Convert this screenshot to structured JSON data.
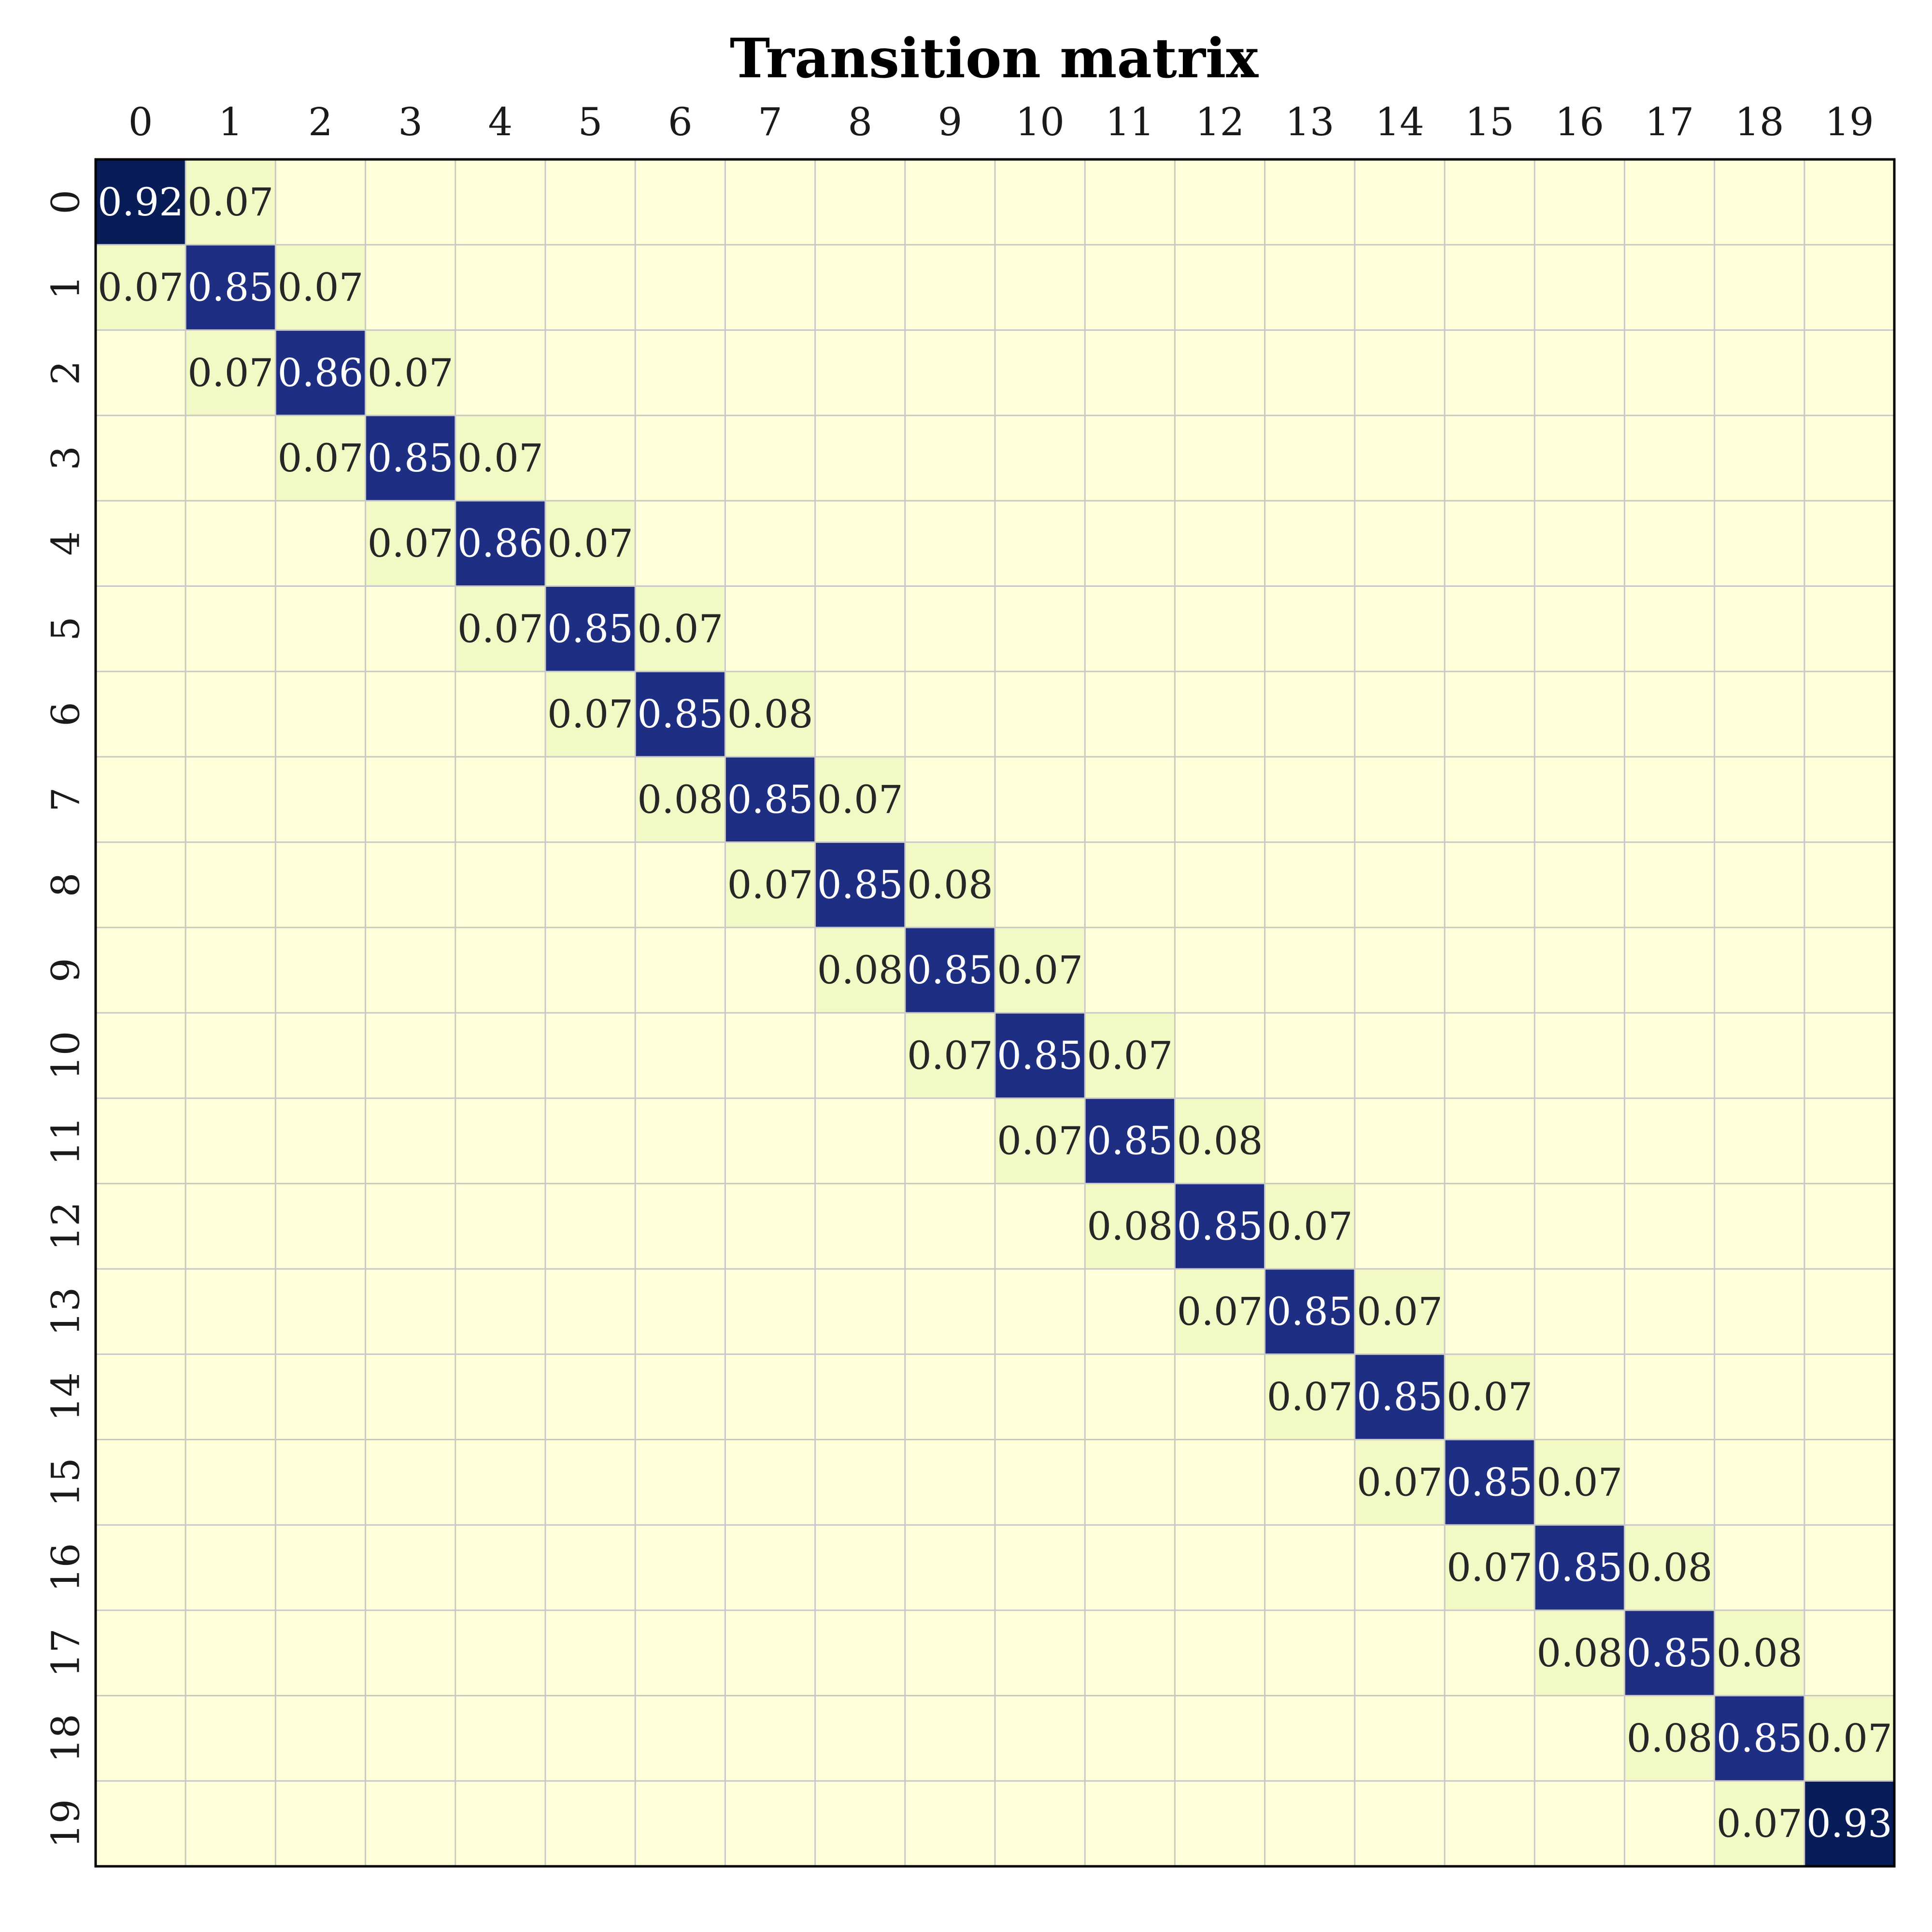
{
  "chart_data": {
    "type": "heatmap",
    "title": "Transition matrix",
    "xlabel": "",
    "ylabel": "",
    "x_tick_position": "top",
    "x_categories": [
      "0",
      "1",
      "2",
      "3",
      "4",
      "5",
      "6",
      "7",
      "8",
      "9",
      "10",
      "11",
      "12",
      "13",
      "14",
      "15",
      "16",
      "17",
      "18",
      "19"
    ],
    "y_categories": [
      "0",
      "1",
      "2",
      "3",
      "4",
      "5",
      "6",
      "7",
      "8",
      "9",
      "10",
      "11",
      "12",
      "13",
      "14",
      "15",
      "16",
      "17",
      "18",
      "19"
    ],
    "colormap": "YlGnBu",
    "grid": true,
    "annotations_shown": "non-zero cells only",
    "cells": [
      {
        "row": 0,
        "col": 0,
        "value": 0.92
      },
      {
        "row": 0,
        "col": 1,
        "value": 0.07
      },
      {
        "row": 1,
        "col": 0,
        "value": 0.07
      },
      {
        "row": 1,
        "col": 1,
        "value": 0.85
      },
      {
        "row": 1,
        "col": 2,
        "value": 0.07
      },
      {
        "row": 2,
        "col": 1,
        "value": 0.07
      },
      {
        "row": 2,
        "col": 2,
        "value": 0.86
      },
      {
        "row": 2,
        "col": 3,
        "value": 0.07
      },
      {
        "row": 3,
        "col": 2,
        "value": 0.07
      },
      {
        "row": 3,
        "col": 3,
        "value": 0.85
      },
      {
        "row": 3,
        "col": 4,
        "value": 0.07
      },
      {
        "row": 4,
        "col": 3,
        "value": 0.07
      },
      {
        "row": 4,
        "col": 4,
        "value": 0.86
      },
      {
        "row": 4,
        "col": 5,
        "value": 0.07
      },
      {
        "row": 5,
        "col": 4,
        "value": 0.07
      },
      {
        "row": 5,
        "col": 5,
        "value": 0.85
      },
      {
        "row": 5,
        "col": 6,
        "value": 0.07
      },
      {
        "row": 6,
        "col": 5,
        "value": 0.07
      },
      {
        "row": 6,
        "col": 6,
        "value": 0.85
      },
      {
        "row": 6,
        "col": 7,
        "value": 0.08
      },
      {
        "row": 7,
        "col": 6,
        "value": 0.08
      },
      {
        "row": 7,
        "col": 7,
        "value": 0.85
      },
      {
        "row": 7,
        "col": 8,
        "value": 0.07
      },
      {
        "row": 8,
        "col": 7,
        "value": 0.07
      },
      {
        "row": 8,
        "col": 8,
        "value": 0.85
      },
      {
        "row": 8,
        "col": 9,
        "value": 0.08
      },
      {
        "row": 9,
        "col": 8,
        "value": 0.08
      },
      {
        "row": 9,
        "col": 9,
        "value": 0.85
      },
      {
        "row": 9,
        "col": 10,
        "value": 0.07
      },
      {
        "row": 10,
        "col": 9,
        "value": 0.07
      },
      {
        "row": 10,
        "col": 10,
        "value": 0.85
      },
      {
        "row": 10,
        "col": 11,
        "value": 0.07
      },
      {
        "row": 11,
        "col": 10,
        "value": 0.07
      },
      {
        "row": 11,
        "col": 11,
        "value": 0.85
      },
      {
        "row": 11,
        "col": 12,
        "value": 0.08
      },
      {
        "row": 12,
        "col": 11,
        "value": 0.08
      },
      {
        "row": 12,
        "col": 12,
        "value": 0.85
      },
      {
        "row": 12,
        "col": 13,
        "value": 0.07
      },
      {
        "row": 13,
        "col": 12,
        "value": 0.07
      },
      {
        "row": 13,
        "col": 13,
        "value": 0.85
      },
      {
        "row": 13,
        "col": 14,
        "value": 0.07
      },
      {
        "row": 14,
        "col": 13,
        "value": 0.07
      },
      {
        "row": 14,
        "col": 14,
        "value": 0.85
      },
      {
        "row": 14,
        "col": 15,
        "value": 0.07
      },
      {
        "row": 15,
        "col": 14,
        "value": 0.07
      },
      {
        "row": 15,
        "col": 15,
        "value": 0.85
      },
      {
        "row": 15,
        "col": 16,
        "value": 0.07
      },
      {
        "row": 16,
        "col": 15,
        "value": 0.07
      },
      {
        "row": 16,
        "col": 16,
        "value": 0.85
      },
      {
        "row": 16,
        "col": 17,
        "value": 0.08
      },
      {
        "row": 17,
        "col": 16,
        "value": 0.08
      },
      {
        "row": 17,
        "col": 17,
        "value": 0.85
      },
      {
        "row": 17,
        "col": 18,
        "value": 0.08
      },
      {
        "row": 18,
        "col": 17,
        "value": 0.08
      },
      {
        "row": 18,
        "col": 18,
        "value": 0.85
      },
      {
        "row": 18,
        "col": 19,
        "value": 0.07
      },
      {
        "row": 19,
        "col": 18,
        "value": 0.07
      },
      {
        "row": 19,
        "col": 19,
        "value": 0.93
      }
    ]
  },
  "colors": {
    "background": "#ffffff",
    "zero_cell": "#ffffd9",
    "low_cell": "#f3f9c5",
    "high_cell": "#1d2e83",
    "max_cell": "#081d58",
    "grid_line": "#c8c8c8",
    "frame": "#000000",
    "dark_text": "#262626",
    "light_text": "#ffffff"
  }
}
